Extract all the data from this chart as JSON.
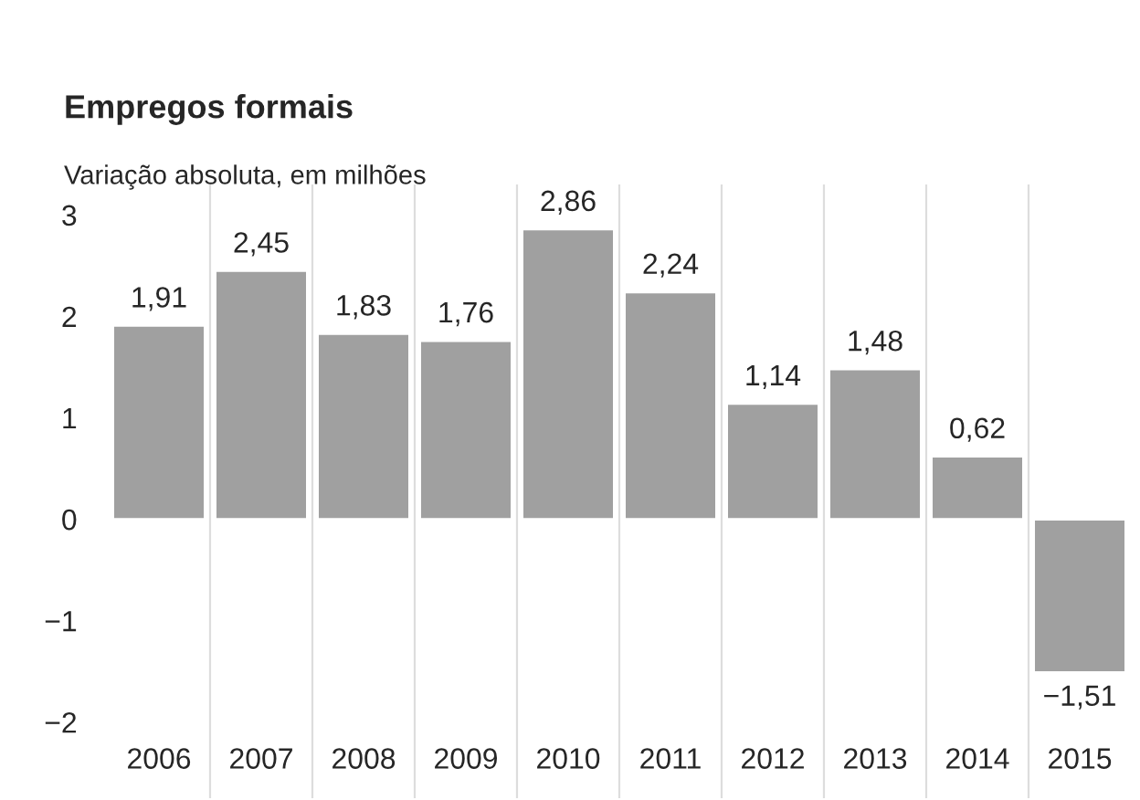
{
  "chart_data": {
    "type": "bar",
    "title": "Empregos formais",
    "subtitle": "Variação absoluta, em milhões",
    "categories": [
      "2006",
      "2007",
      "2008",
      "2009",
      "2010",
      "2011",
      "2012",
      "2013",
      "2014",
      "2015"
    ],
    "values": [
      1.91,
      2.45,
      1.83,
      1.76,
      2.86,
      2.24,
      1.14,
      1.48,
      0.62,
      -1.51
    ],
    "value_labels": [
      "1,91",
      "2,45",
      "1,83",
      "1,76",
      "2,86",
      "2,24",
      "1,14",
      "1,48",
      "0,62",
      "−1,51"
    ],
    "color": "#a0a0a0",
    "ylim": [
      -2.75,
      3.3
    ],
    "yticks": [
      {
        "value": -2,
        "label": "−2"
      },
      {
        "value": -1,
        "label": "−1"
      },
      0,
      1,
      2,
      3
    ],
    "grid": "x"
  }
}
